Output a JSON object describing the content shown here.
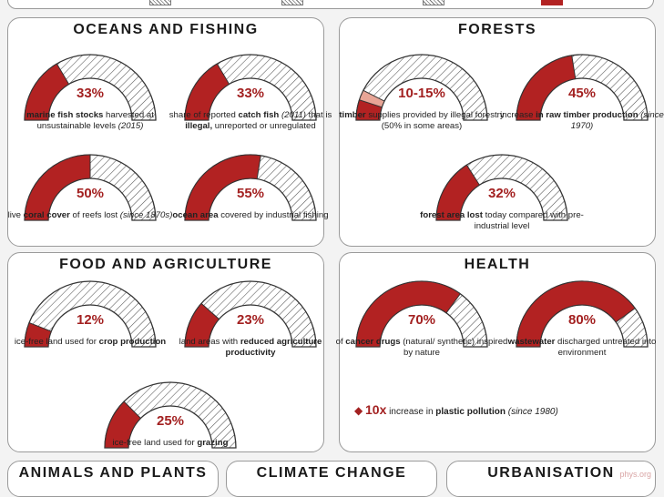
{
  "colors": {
    "accent": "#b22222",
    "light_accent": "#e8a596",
    "hatch": "#555555",
    "border": "#9a9a9a"
  },
  "panels": [
    {
      "key": "oceans",
      "title": "OCEANS AND FISHING"
    },
    {
      "key": "forests",
      "title": "FORESTS"
    },
    {
      "key": "food",
      "title": "FOOD AND AGRICULTURE"
    },
    {
      "key": "health",
      "title": "HEALTH"
    },
    {
      "key": "animals",
      "title": "ANIMALS AND PLANTS"
    },
    {
      "key": "climate",
      "title": "CLIMATE CHANGE"
    },
    {
      "key": "urban",
      "title": "URBANISATION"
    }
  ],
  "chart_data": [
    {
      "type": "gauge",
      "panel": "OCEANS AND FISHING",
      "value": 33,
      "label": "33%",
      "caption": [
        [
          "b",
          "marine fish stocks"
        ],
        [
          "t",
          " harvested at unsustainable levels "
        ],
        [
          "i",
          "(2015)"
        ]
      ]
    },
    {
      "type": "gauge",
      "panel": "OCEANS AND FISHING",
      "value": 33,
      "label": "33%",
      "caption": [
        [
          "t",
          "share of reported "
        ],
        [
          "b",
          "catch fish"
        ],
        [
          "t",
          " "
        ],
        [
          "i",
          "(2011)"
        ],
        [
          "t",
          " that is "
        ],
        [
          "b",
          "illegal,"
        ],
        [
          "t",
          " unreported or unregulated"
        ]
      ]
    },
    {
      "type": "gauge",
      "panel": "OCEANS AND FISHING",
      "value": 50,
      "label": "50%",
      "caption": [
        [
          "t",
          "live "
        ],
        [
          "b",
          "coral cover"
        ],
        [
          "t",
          " of reefs lost "
        ],
        [
          "i",
          "(since 1870s)"
        ]
      ]
    },
    {
      "type": "gauge",
      "panel": "OCEANS AND FISHING",
      "value": 55,
      "label": "55%",
      "caption": [
        [
          "b",
          "ocean area"
        ],
        [
          "t",
          " covered by industrial fishing"
        ]
      ]
    },
    {
      "type": "gauge",
      "panel": "FORESTS",
      "value": 10,
      "value_high": 15,
      "label": "10-15%",
      "caption": [
        [
          "b",
          "timber"
        ],
        [
          "t",
          " supplies provided by illegal forestry (50% in some areas)"
        ]
      ]
    },
    {
      "type": "gauge",
      "panel": "FORESTS",
      "value": 45,
      "label": "45%",
      "caption": [
        [
          "t",
          "increase "
        ],
        [
          "b",
          "in raw timber production"
        ],
        [
          "t",
          " "
        ],
        [
          "i",
          "(since 1970)"
        ]
      ]
    },
    {
      "type": "gauge",
      "panel": "FORESTS",
      "value": 32,
      "label": "32%",
      "caption": [
        [
          "b",
          "forest area lost"
        ],
        [
          "t",
          " today compared with pre-industrial level"
        ]
      ]
    },
    {
      "type": "gauge",
      "panel": "FOOD AND AGRICULTURE",
      "value": 12,
      "label": "12%",
      "caption": [
        [
          "t",
          "ice-free land used for "
        ],
        [
          "b",
          "crop production"
        ]
      ]
    },
    {
      "type": "gauge",
      "panel": "FOOD AND AGRICULTURE",
      "value": 23,
      "label": "23%",
      "caption": [
        [
          "t",
          "land areas with "
        ],
        [
          "b",
          "reduced agriculture productivity"
        ]
      ]
    },
    {
      "type": "gauge",
      "panel": "FOOD AND AGRICULTURE",
      "value": 25,
      "label": "25%",
      "caption": [
        [
          "t",
          "ice-free land used for "
        ],
        [
          "b",
          "grazing"
        ]
      ]
    },
    {
      "type": "gauge",
      "panel": "HEALTH",
      "value": 70,
      "label": "70%",
      "caption": [
        [
          "t",
          "of "
        ],
        [
          "b",
          "cancer drugs"
        ],
        [
          "t",
          " (natural/ synthetic) inspired by nature"
        ]
      ]
    },
    {
      "type": "gauge",
      "panel": "HEALTH",
      "value": 80,
      "label": "80%",
      "caption": [
        [
          "b",
          "wastewater"
        ],
        [
          "t",
          " discharged untreated into environment"
        ]
      ]
    }
  ],
  "health_note": {
    "value": "10x",
    "text_pre": "increase in ",
    "text_bold": "plastic pollution",
    "text_italic": "(since 1980)"
  }
}
